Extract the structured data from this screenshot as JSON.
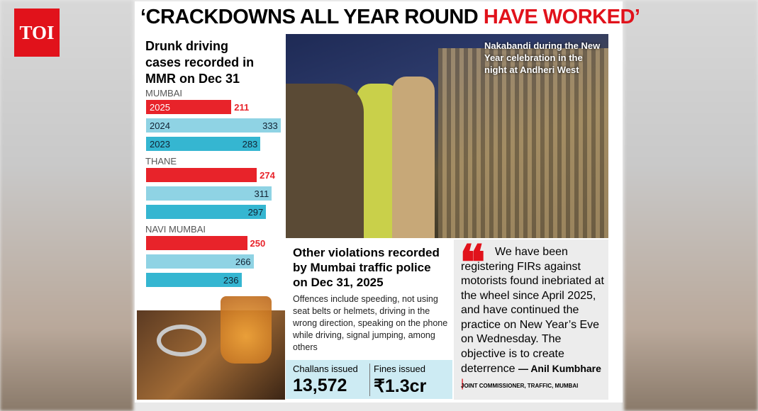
{
  "logo": "TOI",
  "headline": {
    "black": "‘CRACKDOWNS ALL YEAR ROUND",
    "red": "HAVE WORKED’"
  },
  "chart_data": {
    "type": "bar",
    "title": "Drunk driving cases recorded in MMR on Dec 31",
    "categories": [
      "MUMBAI",
      "THANE",
      "NAVI MUMBAI"
    ],
    "series": [
      {
        "name": "2025",
        "color": "#e8232a",
        "values": [
          211,
          274,
          250
        ]
      },
      {
        "name": "2024",
        "color": "#8fd3e4",
        "values": [
          333,
          311,
          266
        ]
      },
      {
        "name": "2023",
        "color": "#35b6d1",
        "values": [
          283,
          297,
          236
        ]
      }
    ]
  },
  "photo_caption": "Nakabandi during the New Year celebration in the night at Andheri West",
  "violations": {
    "title": "Other violations recorded by Mumbai traffic police on Dec 31, 2025",
    "text": "Offences include speeding, not using seat belts or helmets, driving in the wrong direction, speaking on the phone while driving, signal jumping, among others",
    "stats": [
      {
        "label": "Challans issued",
        "value": "13,572"
      },
      {
        "label": "Fines issued",
        "value": "₹1.3cr"
      }
    ]
  },
  "quote": {
    "text": "We have been registering FIRs against motorists found inebriated at the wheel since April 2025, and have continued the practice on New Year’s Eve on Wednesday. The objective is to create deterrence",
    "author": "— Anil Kumbhare",
    "role": "JOINT COMMISSIONER, TRAFFIC, MUMBAI"
  }
}
